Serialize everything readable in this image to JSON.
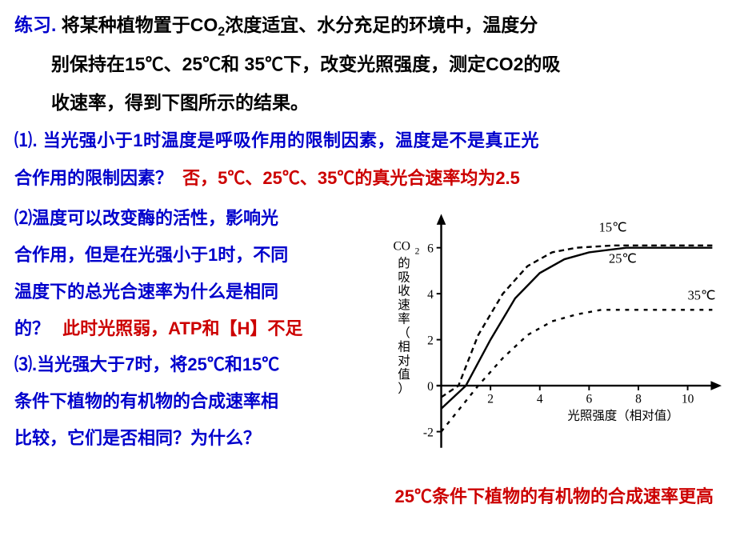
{
  "intro": {
    "label": "练习.",
    "text1": "将某种植物置于CO",
    "sub1": "2",
    "text2": "浓度适宜、水分充足的环境中，温度分",
    "line2": "别保持在15℃、25℃和 35℃下，改变光照强度，测定CO2的吸",
    "line3": "收速率，得到下图所示的结果。"
  },
  "q1": {
    "text1": "⑴. 当光强小于1时温度是呼吸作用的限制因素，温度是不是真正光",
    "text2": "合作用的限制因素？",
    "answer": "否，5℃、25℃、35℃的真光合速率均为2.5"
  },
  "q2": {
    "text1": "⑵温度可以改变酶的活性，影响光",
    "text2": "合作用，但是在光强小于1时，不同",
    "text3": "温度下的总光合速率为什么是相同",
    "text4": "的？",
    "answer": "此时光照弱，ATP和【H】不足"
  },
  "q3": {
    "text1": "⑶.当光强大于7时，将25℃和15℃",
    "text2": "条件下植物的有机物的合成速率相",
    "text3": "比较，它们是否相同？为什么？",
    "answer": "25℃条件下植物的有机物的合成速率更高"
  },
  "chart": {
    "type": "line",
    "background_color": "#ffffff",
    "axis_color": "#000000",
    "line_width": 2.5,
    "dash_pattern_15": "7 5",
    "dash_pattern_35": "5 7",
    "x_axis": {
      "label": "光照强度（相对值）",
      "ticks": [
        2,
        4,
        6,
        8,
        10
      ],
      "min": 0,
      "max": 11
    },
    "y_axis": {
      "label_l1": "CO",
      "label_sub": "2",
      "label_l2": "的吸收速率（相对值）",
      "ticks": [
        -2,
        0,
        2,
        4,
        6
      ],
      "min": -2.5,
      "max": 7
    },
    "series": [
      {
        "name": "15℃",
        "label": "15℃",
        "style": "dash-dot",
        "color": "#000000",
        "points": [
          [
            0,
            -0.5
          ],
          [
            0.7,
            0
          ],
          [
            1.5,
            2.2
          ],
          [
            2.5,
            4.0
          ],
          [
            3.5,
            5.2
          ],
          [
            4.5,
            5.8
          ],
          [
            5.5,
            6.0
          ],
          [
            7,
            6.1
          ],
          [
            9,
            6.1
          ],
          [
            11,
            6.1
          ]
        ]
      },
      {
        "name": "25℃",
        "label": "25℃",
        "style": "solid",
        "color": "#000000",
        "points": [
          [
            0,
            -1.0
          ],
          [
            1.0,
            0
          ],
          [
            2.0,
            2.0
          ],
          [
            3.0,
            3.8
          ],
          [
            4.0,
            4.9
          ],
          [
            5.0,
            5.5
          ],
          [
            6.0,
            5.8
          ],
          [
            7.5,
            6.0
          ],
          [
            9,
            6.0
          ],
          [
            11,
            6.0
          ]
        ]
      },
      {
        "name": "35℃",
        "label": "35℃",
        "style": "dashed",
        "color": "#000000",
        "points": [
          [
            0,
            -2.0
          ],
          [
            1.5,
            0
          ],
          [
            2.5,
            1.2
          ],
          [
            3.5,
            2.2
          ],
          [
            4.5,
            2.8
          ],
          [
            5.5,
            3.1
          ],
          [
            6.5,
            3.3
          ],
          [
            8,
            3.3
          ],
          [
            10,
            3.3
          ],
          [
            11,
            3.3
          ]
        ]
      }
    ],
    "label_positions": {
      "15℃": [
        6.4,
        6.7
      ],
      "25℃": [
        6.8,
        5.35
      ],
      "35℃": [
        10.0,
        3.75
      ]
    },
    "font_size_axis": 16,
    "font_size_series": 17
  }
}
